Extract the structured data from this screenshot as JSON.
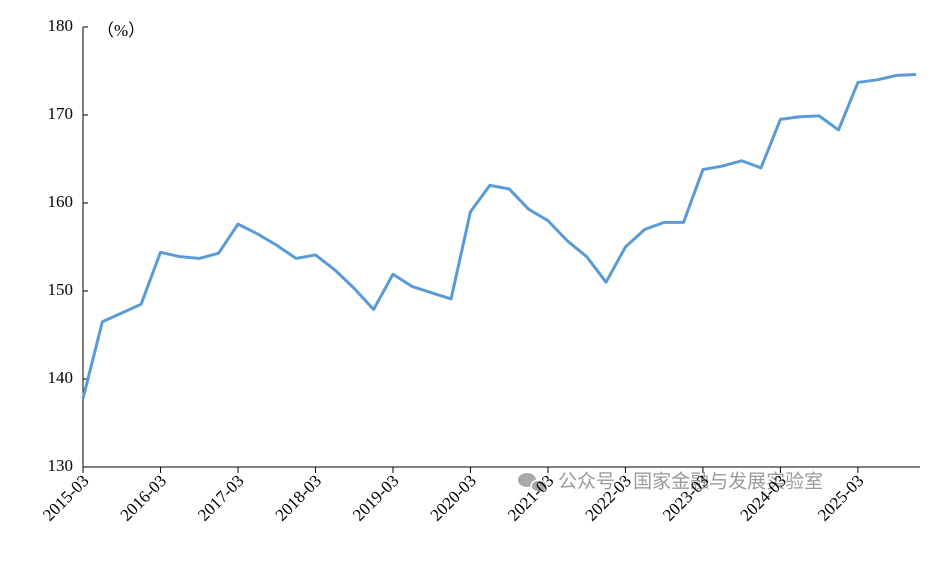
{
  "chart_data": {
    "type": "line",
    "unit_label": "（%）",
    "watermark": "公众号 · 国家金融与发展实验室",
    "categories": [
      "2015-03",
      null,
      null,
      null,
      "2016-03",
      null,
      null,
      null,
      "2017-03",
      null,
      null,
      null,
      "2018-03",
      null,
      null,
      null,
      "2019-03",
      null,
      null,
      null,
      "2020-03",
      null,
      null,
      null,
      "2021-03",
      null,
      null,
      null,
      "2022-03",
      null,
      null,
      null,
      "2023-03",
      null,
      null,
      null,
      "2024-03",
      null,
      null,
      null,
      "2025-03",
      null,
      null,
      null
    ],
    "series": [
      {
        "color": "#5b9bd5",
        "values": [
          137.8,
          146.5,
          147.5,
          148.5,
          154.4,
          153.9,
          153.7,
          154.3,
          157.6,
          156.5,
          155.2,
          153.7,
          154.1,
          152.4,
          150.3,
          147.9,
          151.9,
          150.5,
          149.8,
          149.1,
          159.0,
          162.0,
          161.6,
          159.3,
          158.0,
          155.7,
          153.9,
          151.0,
          155.0,
          157.0,
          157.8,
          157.8,
          163.8,
          164.2,
          164.8,
          164.0,
          169.5,
          169.8,
          169.9,
          168.3,
          173.7,
          174.0,
          174.5,
          174.6
        ]
      }
    ],
    "ylim": [
      130,
      180
    ],
    "yticks": [
      130,
      140,
      150,
      160,
      170,
      180
    ],
    "grid": false
  }
}
